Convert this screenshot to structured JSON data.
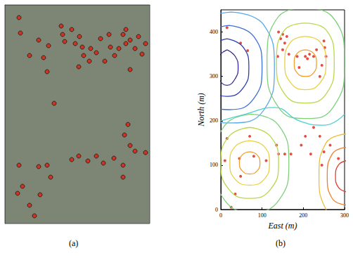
{
  "chart_data": [
    {
      "type": "scatter",
      "caption": "(a)",
      "color": "#e02010",
      "tick_labels": false,
      "xlim": [
        0,
        206
      ],
      "ylim": [
        0,
        311
      ],
      "points": [
        [
          20,
          18
        ],
        [
          22,
          40
        ],
        [
          48,
          50
        ],
        [
          62,
          58
        ],
        [
          35,
          72
        ],
        [
          55,
          75
        ],
        [
          80,
          30
        ],
        [
          82,
          42
        ],
        [
          85,
          52
        ],
        [
          95,
          35
        ],
        [
          100,
          55
        ],
        [
          106,
          45
        ],
        [
          110,
          60
        ],
        [
          112,
          72
        ],
        [
          122,
          62
        ],
        [
          130,
          68
        ],
        [
          136,
          48
        ],
        [
          148,
          42
        ],
        [
          150,
          60
        ],
        [
          156,
          72
        ],
        [
          162,
          62
        ],
        [
          168,
          42
        ],
        [
          172,
          55
        ],
        [
          178,
          50
        ],
        [
          185,
          62
        ],
        [
          190,
          45
        ],
        [
          195,
          70
        ],
        [
          200,
          55
        ],
        [
          172,
          35
        ],
        [
          105,
          88
        ],
        [
          142,
          80
        ],
        [
          178,
          92
        ],
        [
          120,
          80
        ],
        [
          60,
          95
        ],
        [
          70,
          140
        ],
        [
          175,
          170
        ],
        [
          170,
          185
        ],
        [
          178,
          200
        ],
        [
          185,
          208
        ],
        [
          200,
          210
        ],
        [
          130,
          215
        ],
        [
          118,
          222
        ],
        [
          105,
          215
        ],
        [
          140,
          225
        ],
        [
          95,
          220
        ],
        [
          155,
          218
        ],
        [
          168,
          228
        ],
        [
          168,
          245
        ],
        [
          20,
          228
        ],
        [
          48,
          230
        ],
        [
          60,
          228
        ],
        [
          65,
          245
        ],
        [
          18,
          268
        ],
        [
          35,
          285
        ],
        [
          42,
          300
        ],
        [
          50,
          270
        ],
        [
          25,
          258
        ]
      ]
    },
    {
      "type": "contour",
      "caption": "(b)",
      "x_label": "East (m)",
      "y_label": "North (m)",
      "color": "#e02010",
      "xlim": [
        0,
        300
      ],
      "ylim": [
        0,
        450
      ],
      "xticks": [
        0,
        100,
        200,
        300
      ],
      "yticks": [
        0,
        100,
        200,
        300,
        400
      ],
      "points": [
        [
          15,
          410
        ],
        [
          48,
          375
        ],
        [
          65,
          358
        ],
        [
          140,
          400
        ],
        [
          145,
          385
        ],
        [
          150,
          395
        ],
        [
          155,
          375
        ],
        [
          160,
          390
        ],
        [
          150,
          360
        ],
        [
          138,
          345
        ],
        [
          165,
          350
        ],
        [
          185,
          345
        ],
        [
          190,
          320
        ],
        [
          205,
          345
        ],
        [
          210,
          340
        ],
        [
          215,
          350
        ],
        [
          225,
          345
        ],
        [
          250,
          380
        ],
        [
          252,
          365
        ],
        [
          232,
          360
        ],
        [
          255,
          345
        ],
        [
          245,
          325
        ],
        [
          240,
          300
        ],
        [
          15,
          160
        ],
        [
          10,
          110
        ],
        [
          45,
          115
        ],
        [
          48,
          75
        ],
        [
          70,
          165
        ],
        [
          80,
          120
        ],
        [
          110,
          110
        ],
        [
          135,
          145
        ],
        [
          140,
          125
        ],
        [
          155,
          125
        ],
        [
          170,
          125
        ],
        [
          195,
          145
        ],
        [
          205,
          165
        ],
        [
          218,
          125
        ],
        [
          225,
          185
        ],
        [
          240,
          165
        ],
        [
          250,
          130
        ],
        [
          245,
          100
        ],
        [
          265,
          145
        ],
        [
          285,
          115
        ],
        [
          35,
          35
        ],
        [
          25,
          5
        ]
      ],
      "contours": [
        {
          "color": "#3b2a8f",
          "points": [
            [
              15,
              360
            ],
            [
              35,
              345
            ],
            [
              42,
              320
            ],
            [
              35,
              295
            ],
            [
              15,
              280
            ],
            [
              -5,
              295
            ],
            [
              -12,
              320
            ],
            [
              -5,
              345
            ],
            [
              15,
              360
            ]
          ]
        },
        {
          "color": "#2b3fb0",
          "points": [
            [
              15,
              385
            ],
            [
              55,
              365
            ],
            [
              68,
              320
            ],
            [
              55,
              275
            ],
            [
              15,
              255
            ],
            [
              -25,
              275
            ],
            [
              -38,
              320
            ],
            [
              -25,
              365
            ],
            [
              15,
              385
            ]
          ]
        },
        {
          "color": "#3d6fd8",
          "points": [
            [
              20,
              415
            ],
            [
              80,
              390
            ],
            [
              100,
              320
            ],
            [
              80,
              250
            ],
            [
              20,
              225
            ],
            [
              -40,
              250
            ],
            [
              -60,
              320
            ],
            [
              -40,
              390
            ],
            [
              20,
              415
            ]
          ]
        },
        {
          "color": "#5aa7e8",
          "points": [
            [
              25,
              445
            ],
            [
              105,
              415
            ],
            [
              130,
              320
            ],
            [
              105,
              225
            ],
            [
              25,
              195
            ],
            [
              -55,
              225
            ],
            [
              -80,
              320
            ],
            [
              -55,
              415
            ],
            [
              25,
              445
            ]
          ]
        },
        {
          "color": "#f0a030",
          "points": [
            [
              205,
              360
            ],
            [
              225,
              352
            ],
            [
              232,
              330
            ],
            [
              225,
              308
            ],
            [
              205,
              300
            ],
            [
              185,
              308
            ],
            [
              178,
              330
            ],
            [
              185,
              352
            ],
            [
              205,
              360
            ]
          ]
        },
        {
          "color": "#e8d040",
          "points": [
            [
              205,
              390
            ],
            [
              240,
              378
            ],
            [
              255,
              330
            ],
            [
              240,
              285
            ],
            [
              205,
              270
            ],
            [
              170,
              285
            ],
            [
              155,
              330
            ],
            [
              170,
              378
            ],
            [
              205,
              390
            ]
          ]
        },
        {
          "color": "#b8d84a",
          "points": [
            [
              205,
              420
            ],
            [
              255,
              405
            ],
            [
              275,
              330
            ],
            [
              255,
              260
            ],
            [
              205,
              240
            ],
            [
              155,
              260
            ],
            [
              135,
              330
            ],
            [
              155,
              405
            ],
            [
              205,
              420
            ]
          ]
        },
        {
          "color": "#7fd07a",
          "points": [
            [
              205,
              455
            ],
            [
              270,
              435
            ],
            [
              300,
              330
            ],
            [
              272,
              230
            ],
            [
              205,
              205
            ],
            [
              140,
              230
            ],
            [
              112,
              330
            ],
            [
              140,
              435
            ],
            [
              205,
              455
            ]
          ]
        },
        {
          "color": "#f0a030",
          "points": [
            [
              70,
              130
            ],
            [
              88,
              123
            ],
            [
              95,
              105
            ],
            [
              88,
              87
            ],
            [
              70,
              80
            ],
            [
              52,
              87
            ],
            [
              45,
              105
            ],
            [
              52,
              123
            ],
            [
              70,
              130
            ]
          ]
        },
        {
          "color": "#e8d040",
          "points": [
            [
              70,
              155
            ],
            [
              105,
              142
            ],
            [
              118,
              105
            ],
            [
              105,
              68
            ],
            [
              70,
              55
            ],
            [
              35,
              68
            ],
            [
              22,
              105
            ],
            [
              35,
              142
            ],
            [
              70,
              155
            ]
          ]
        },
        {
          "color": "#b8d84a",
          "points": [
            [
              70,
              185
            ],
            [
              120,
              165
            ],
            [
              140,
              105
            ],
            [
              120,
              45
            ],
            [
              70,
              25
            ],
            [
              20,
              45
            ],
            [
              0,
              105
            ],
            [
              20,
              165
            ],
            [
              70,
              185
            ]
          ]
        },
        {
          "color": "#7fd07a",
          "points": [
            [
              75,
              215
            ],
            [
              140,
              190
            ],
            [
              165,
              105
            ],
            [
              140,
              20
            ],
            [
              75,
              -5
            ],
            [
              10,
              20
            ],
            [
              -15,
              105
            ],
            [
              10,
              190
            ],
            [
              75,
              215
            ]
          ]
        },
        {
          "color": "#e04030",
          "points": [
            [
              305,
              110
            ],
            [
              285,
              100
            ],
            [
              278,
              75
            ],
            [
              285,
              50
            ],
            [
              305,
              40
            ]
          ]
        },
        {
          "color": "#f08030",
          "points": [
            [
              305,
              140
            ],
            [
              270,
              125
            ],
            [
              258,
              75
            ],
            [
              270,
              25
            ],
            [
              305,
              10
            ]
          ]
        },
        {
          "color": "#e8c040",
          "points": [
            [
              305,
              170
            ],
            [
              255,
              150
            ],
            [
              238,
              75
            ],
            [
              255,
              0
            ],
            [
              290,
              -20
            ]
          ]
        },
        {
          "color": "#50d0d0",
          "points": [
            [
              0,
              200
            ],
            [
              60,
              215
            ],
            [
              130,
              230
            ],
            [
              190,
              200
            ],
            [
              250,
              190
            ],
            [
              300,
              215
            ]
          ]
        }
      ]
    }
  ]
}
